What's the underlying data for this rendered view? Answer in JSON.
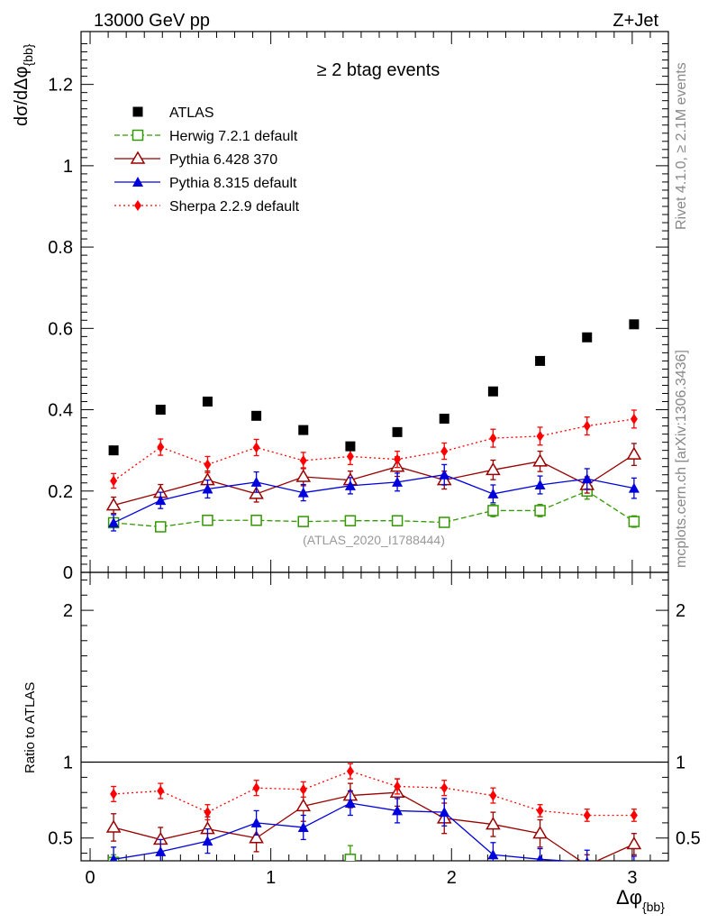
{
  "header": {
    "left": "13000 GeV pp",
    "right": "Z+Jet",
    "selection": "≥ 2 btag events",
    "analysis_tag": "(ATLAS_2020_I1788444)"
  },
  "side_labels": {
    "rivet": "Rivet 4.1.0, ≥ 2.1M events",
    "mcplots": "mcplots.cern.ch [arXiv:1306.3436]"
  },
  "chart_data": {
    "type": "scatter",
    "title": "≥ 2 btag events",
    "xlabel": "Δφ",
    "xlabel_sub": "{bb}",
    "ylabel": "dσ/dΔφ",
    "ylabel_sub": "{bb}",
    "ratio_ylabel": "Ratio to ATLAS",
    "xlim": [
      -0.05,
      3.2
    ],
    "ylim": [
      0,
      1.33
    ],
    "ratio_ylim": [
      0.35,
      2.25
    ],
    "x_ticks": [
      "0",
      "1",
      "2",
      "3"
    ],
    "y_ticks": [
      "0",
      "0.2",
      "0.4",
      "0.6",
      "0.8",
      "1",
      "1.2"
    ],
    "ratio_ticks": [
      "0.5",
      "1",
      "2"
    ],
    "x": [
      0.13,
      0.39,
      0.65,
      0.92,
      1.18,
      1.44,
      1.7,
      1.96,
      2.23,
      2.49,
      2.75,
      3.01
    ],
    "series": [
      {
        "name": "ATLAS",
        "color": "#000000",
        "marker": "square-filled",
        "line": "none",
        "values": [
          0.3,
          0.4,
          0.42,
          0.385,
          0.35,
          0.31,
          0.345,
          0.378,
          0.445,
          0.52,
          0.578,
          0.61
        ],
        "errors": [
          0,
          0,
          0,
          0,
          0,
          0,
          0,
          0,
          0,
          0,
          0,
          0
        ]
      },
      {
        "name": "Herwig 7.2.1 default",
        "color": "#339900",
        "marker": "square-open",
        "line": "dashed",
        "values": [
          0.122,
          0.112,
          0.128,
          0.128,
          0.125,
          0.127,
          0.127,
          0.123,
          0.152,
          0.152,
          0.2,
          0.125
        ],
        "errors": [
          0.012,
          0.01,
          0.012,
          0.012,
          0.012,
          0.012,
          0.012,
          0.012,
          0.015,
          0.015,
          0.02,
          0.014
        ]
      },
      {
        "name": "Pythia 6.428 370",
        "color": "#990000",
        "marker": "triangle-open",
        "line": "solid",
        "values": [
          0.165,
          0.196,
          0.227,
          0.193,
          0.235,
          0.227,
          0.26,
          0.227,
          0.252,
          0.273,
          0.215,
          0.29
        ],
        "errors": [
          0.02,
          0.02,
          0.022,
          0.02,
          0.022,
          0.022,
          0.024,
          0.022,
          0.024,
          0.025,
          0.02,
          0.027
        ]
      },
      {
        "name": "Pythia 8.315 default",
        "color": "#0000dd",
        "marker": "triangle-filled",
        "line": "solid",
        "values": [
          0.122,
          0.177,
          0.205,
          0.222,
          0.196,
          0.213,
          0.222,
          0.24,
          0.193,
          0.215,
          0.23,
          0.207
        ],
        "errors": [
          0.02,
          0.02,
          0.022,
          0.025,
          0.02,
          0.02,
          0.022,
          0.025,
          0.022,
          0.022,
          0.025,
          0.025
        ]
      },
      {
        "name": "Sherpa 2.2.9 default",
        "color": "#ff0000",
        "marker": "diamond-filled",
        "line": "dotted",
        "values": [
          0.225,
          0.308,
          0.265,
          0.307,
          0.275,
          0.285,
          0.278,
          0.298,
          0.33,
          0.335,
          0.36,
          0.377
        ],
        "errors": [
          0.018,
          0.02,
          0.02,
          0.02,
          0.02,
          0.02,
          0.02,
          0.02,
          0.022,
          0.022,
          0.022,
          0.022
        ]
      }
    ],
    "ratio_series": [
      {
        "name": "Herwig 7.2.1 default",
        "x": [
          0.13,
          1.44
        ],
        "values": [
          0.34,
          0.36
        ],
        "errors": [
          0.05,
          0.09
        ]
      },
      {
        "name": "Pythia 6.428 370",
        "values": [
          0.57,
          0.49,
          0.56,
          0.5,
          0.71,
          0.78,
          0.8,
          0.63,
          0.59,
          0.53,
          0.32,
          0.46
        ],
        "errors": [
          0.09,
          0.08,
          0.08,
          0.09,
          0.1,
          0.08,
          0.09,
          0.1,
          0.08,
          0.09,
          0.07,
          0.07
        ]
      },
      {
        "name": "Pythia 8.315 default",
        "values": [
          0.36,
          0.41,
          0.48,
          0.6,
          0.57,
          0.73,
          0.68,
          0.67,
          0.39,
          0.36,
          0.34,
          0.32
        ],
        "errors": [
          0.08,
          0.08,
          0.08,
          0.08,
          0.08,
          0.08,
          0.08,
          0.09,
          0.08,
          0.07,
          0.08,
          0.06
        ]
      },
      {
        "name": "Sherpa 2.2.9 default",
        "values": [
          0.79,
          0.81,
          0.67,
          0.83,
          0.82,
          0.94,
          0.84,
          0.83,
          0.78,
          0.68,
          0.65,
          0.65
        ],
        "errors": [
          0.05,
          0.05,
          0.05,
          0.05,
          0.05,
          0.05,
          0.05,
          0.05,
          0.05,
          0.04,
          0.04,
          0.04
        ]
      }
    ]
  }
}
